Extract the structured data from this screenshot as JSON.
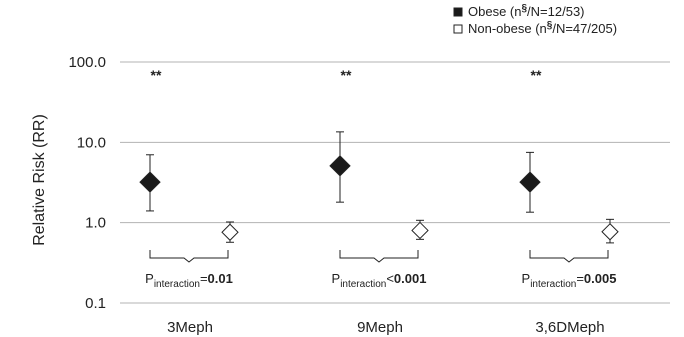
{
  "chart_data": {
    "type": "scatter",
    "ylabel": "Relative Risk (RR)",
    "yscale": "log",
    "ylim": [
      0.1,
      100.0
    ],
    "yticks": [
      "100.0",
      "10.0",
      "1.0",
      "0.1"
    ],
    "ytick_values": [
      100,
      10,
      1,
      0.1
    ],
    "grid": "horizontal",
    "legend_position": "top-right",
    "categories": [
      "3Meph",
      "9Meph",
      "3,6DMeph"
    ],
    "series": [
      {
        "name": "Obese (n§/N=12/53)",
        "legend_prefix": "Obese (n",
        "legend_sup": "§",
        "legend_suffix": "/N=12/53)",
        "marker": "filled-diamond",
        "color": "#1a1a1a",
        "values": [
          3.2,
          5.1,
          3.2
        ],
        "ci_low": [
          1.4,
          1.8,
          1.35
        ],
        "ci_high": [
          7.0,
          13.5,
          7.5
        ]
      },
      {
        "name": "Non-obese (n§/N=47/205)",
        "legend_prefix": "Non-obese (n",
        "legend_sup": "§",
        "legend_suffix": "/N=47/205)",
        "marker": "open-diamond",
        "color": "#ffffff",
        "values": [
          0.76,
          0.8,
          0.77
        ],
        "ci_low": [
          0.57,
          0.62,
          0.56
        ],
        "ci_high": [
          1.02,
          1.07,
          1.1
        ]
      }
    ],
    "annotations": {
      "significance": [
        "**",
        "**",
        "**"
      ],
      "p_interaction": [
        {
          "prefix": "P",
          "sub": "interaction",
          "op": "=",
          "value": "0.01"
        },
        {
          "prefix": "P",
          "sub": "interaction",
          "op": "<",
          "value": "0.001"
        },
        {
          "prefix": "P",
          "sub": "interaction",
          "op": "=",
          "value": "0.005"
        }
      ]
    }
  }
}
